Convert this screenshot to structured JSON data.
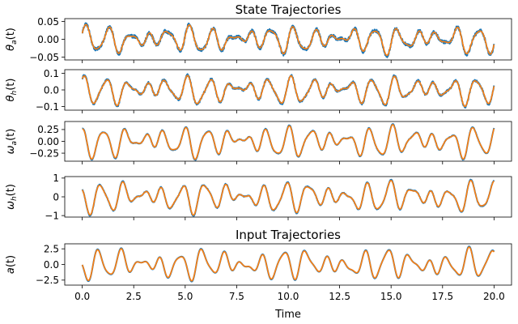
{
  "chart_data": [
    {
      "type": "line",
      "title": "State Trajectories",
      "ylabel_html": "θ_a(t)",
      "ylabel": {
        "main": "θ",
        "sub": "a",
        "tail": "(t)"
      },
      "xlim": [
        -0.85,
        20.85
      ],
      "ylim": [
        -0.058,
        0.058
      ],
      "yticks": [
        0.05,
        0.0,
        -0.05
      ],
      "ytick_labels": [
        "0.05",
        "0.00",
        "−0.05"
      ],
      "amplitude": 0.038,
      "xticks": [
        0,
        2.5,
        5,
        7.5,
        10,
        12.5,
        15,
        17.5,
        20
      ],
      "series": [
        {
          "color": "#1f77b4",
          "noise": 0.0045
        },
        {
          "color": "#ff7f0e",
          "noise": 0.0
        }
      ]
    },
    {
      "type": "line",
      "ylabel": {
        "main": "θ",
        "sub": "h",
        "tail": "(t)"
      },
      "xlim": [
        -0.85,
        20.85
      ],
      "ylim": [
        -0.122,
        0.122
      ],
      "yticks": [
        0.1,
        0.0,
        -0.1
      ],
      "ytick_labels": [
        "0.1",
        "0.0",
        "−0.1"
      ],
      "amplitude": 0.085,
      "series": [
        {
          "color": "#1f77b4",
          "noise": 0.006
        },
        {
          "color": "#ff7f0e",
          "noise": 0.0
        }
      ]
    },
    {
      "type": "line",
      "ylabel": {
        "main": "ω",
        "sub": "a",
        "tail": "(t)"
      },
      "xlim": [
        -0.85,
        20.85
      ],
      "ylim": [
        -0.42,
        0.42
      ],
      "yticks": [
        0.25,
        0.0,
        -0.25
      ],
      "ytick_labels": [
        "0.25",
        "0.00",
        "−0.25"
      ],
      "amplitude": 0.33,
      "series": [
        {
          "color": "#1f77b4",
          "noise": 0.006
        },
        {
          "color": "#ff7f0e",
          "noise": 0.0
        }
      ]
    },
    {
      "type": "line",
      "ylabel": {
        "main": "ω",
        "sub": "h",
        "tail": "(t)"
      },
      "xlim": [
        -0.85,
        20.85
      ],
      "ylim": [
        -1.08,
        1.08
      ],
      "yticks": [
        1,
        0,
        -1
      ],
      "ytick_labels": [
        "1",
        "0",
        "−1"
      ],
      "amplitude": 0.82,
      "series": [
        {
          "color": "#1f77b4",
          "noise": 0.02
        },
        {
          "color": "#ff7f0e",
          "noise": 0.0
        }
      ]
    },
    {
      "type": "line",
      "title": "Input Trajectories",
      "ylabel": {
        "main": "a",
        "sub": "",
        "tail": "(t)"
      },
      "xlabel": "Time",
      "xlim": [
        -0.85,
        20.85
      ],
      "ylim": [
        -3.3,
        3.3
      ],
      "yticks": [
        2.5,
        0.0,
        -2.5
      ],
      "ytick_labels": [
        "2.5",
        "0.0",
        "−2.5"
      ],
      "amplitude": 2.4,
      "xticks": [
        0,
        2.5,
        5,
        7.5,
        10,
        12.5,
        15,
        17.5,
        20
      ],
      "xtick_labels": [
        "0.0",
        "2.5",
        "5.0",
        "7.5",
        "10.0",
        "12.5",
        "15.0",
        "17.5",
        "20.0"
      ],
      "series": [
        {
          "color": "#1f77b4",
          "noise": 0.0
        },
        {
          "color": "#ff7f0e",
          "noise": 0.0
        }
      ]
    }
  ]
}
